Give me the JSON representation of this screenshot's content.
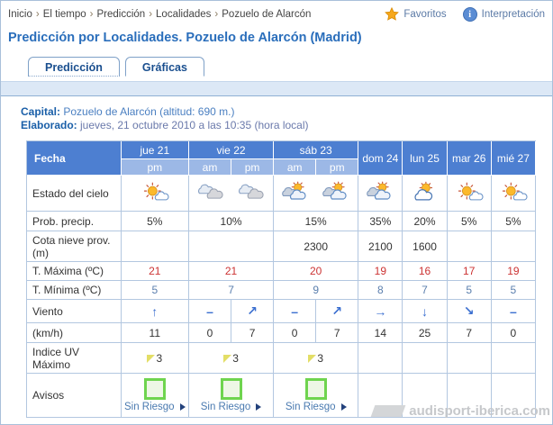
{
  "breadcrumb": {
    "separator": "›",
    "items": [
      "Inicio",
      "El tiempo",
      "Predicción",
      "Localidades",
      "Pozuelo de Alarcón"
    ]
  },
  "header_links": {
    "favoritos": "Favoritos",
    "interpretacion": "Interpretación"
  },
  "title": "Predicción por Localidades. Pozuelo de Alarcón (Madrid)",
  "tabs": [
    {
      "label": "Predicción",
      "active": true
    },
    {
      "label": "Gráficas",
      "active": false
    }
  ],
  "meta": {
    "capital_label": "Capital:",
    "capital_value": "Pozuelo de Alarcón (altitud: 690 m.)",
    "elaborado_label": "Elaborado:",
    "elaborado_value": "jueves, 21 octubre 2010 a las 10:35 (hora local)"
  },
  "table": {
    "corner": "Fecha",
    "days": [
      {
        "label": "jue 21",
        "periods": [
          "pm"
        ]
      },
      {
        "label": "vie 22",
        "periods": [
          "am",
          "pm"
        ]
      },
      {
        "label": "sáb 23",
        "periods": [
          "am",
          "pm"
        ]
      },
      {
        "label": "dom 24",
        "periods": []
      },
      {
        "label": "lun 25",
        "periods": []
      },
      {
        "label": "mar 26",
        "periods": []
      },
      {
        "label": "mié 27",
        "periods": []
      }
    ],
    "rows": {
      "sky": {
        "label": "Estado del cielo",
        "icons": [
          "sun-cloud",
          "clouds",
          "clouds",
          "cloud-sun",
          "cloud-sun",
          "cloud-sun",
          "cloud-sun-large",
          "sun-cloud",
          "sun-cloud"
        ]
      },
      "precip": {
        "label": "Prob. precip.",
        "values": [
          "5%",
          "10%",
          "15%",
          "35%",
          "20%",
          "5%",
          "5%"
        ]
      },
      "snow": {
        "label": "Cota nieve prov.(m)",
        "values": [
          "",
          "",
          "2300",
          "2100",
          "1600",
          "",
          ""
        ]
      },
      "tmax": {
        "label": "T. Máxima (ºC)",
        "values": [
          "21",
          "21",
          "20",
          "19",
          "16",
          "17",
          "19"
        ]
      },
      "tmin": {
        "label": "T. Mínima (ºC)",
        "values": [
          "5",
          "7",
          "9",
          "8",
          "7",
          "5",
          "5"
        ]
      },
      "wind": {
        "label": "Viento",
        "values": [
          "↑",
          "–",
          "↗",
          "–",
          "↗",
          "→",
          "↓",
          "↘",
          "–"
        ]
      },
      "windspeed": {
        "label": "(km/h)",
        "values": [
          "11",
          "0",
          "7",
          "0",
          "7",
          "14",
          "25",
          "7",
          "0"
        ]
      },
      "uv": {
        "label": "Indice UV Máximo",
        "values": [
          "3",
          "3",
          "3",
          "",
          "",
          "",
          ""
        ]
      },
      "avisos": {
        "label": "Avisos",
        "values": [
          "Sin Riesgo",
          "Sin Riesgo",
          "Sin Riesgo",
          "",
          "",
          "",
          ""
        ]
      }
    }
  },
  "watermark": "audisport-iberica.com",
  "colors": {
    "header_blue": "#4d7fd1",
    "subheader_blue": "#9cb8e6",
    "border_blue": "#b3c7e0",
    "title_blue": "#2a6ebb",
    "tmax_red": "#cc3333",
    "tmin_blue": "#5b7fae",
    "risk_green": "#6fd44f",
    "star_orange": "#f6a81d"
  }
}
